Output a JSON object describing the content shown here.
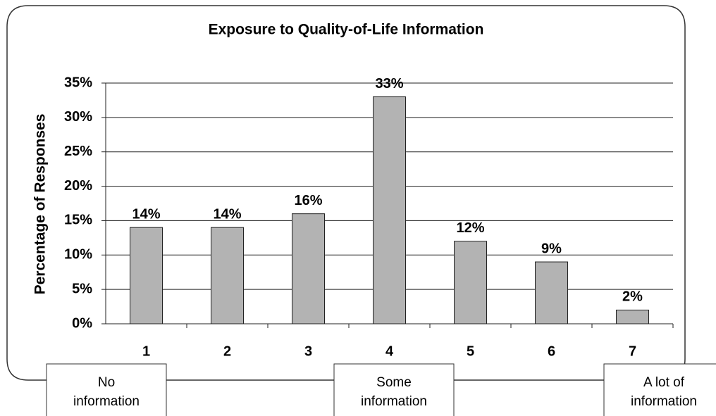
{
  "chart_data": {
    "type": "bar",
    "title": "Exposure to Quality-of-Life Information",
    "y_label": "Percentage of Responses",
    "categories": [
      "1",
      "2",
      "3",
      "4",
      "5",
      "6",
      "7"
    ],
    "values": [
      14,
      14,
      16,
      33,
      12,
      9,
      2
    ],
    "value_labels": [
      "14%",
      "14%",
      "16%",
      "33%",
      "12%",
      "9%",
      "2%"
    ],
    "color": "#b3b3b3",
    "ylim": [
      0,
      35
    ],
    "yticks": [
      {
        "value": 0,
        "label": "0%"
      },
      {
        "value": 5,
        "label": "5%"
      },
      {
        "value": 10,
        "label": "10%"
      },
      {
        "value": 15,
        "label": "15%"
      },
      {
        "value": 20,
        "label": "20%"
      },
      {
        "value": 25,
        "label": "25%"
      },
      {
        "value": 30,
        "label": "30%"
      },
      {
        "value": 35,
        "label": "35%"
      }
    ],
    "grid": true,
    "annotations": [
      [
        "No",
        "information"
      ],
      [
        "Some",
        "information"
      ],
      [
        "A lot of",
        "information"
      ]
    ]
  }
}
